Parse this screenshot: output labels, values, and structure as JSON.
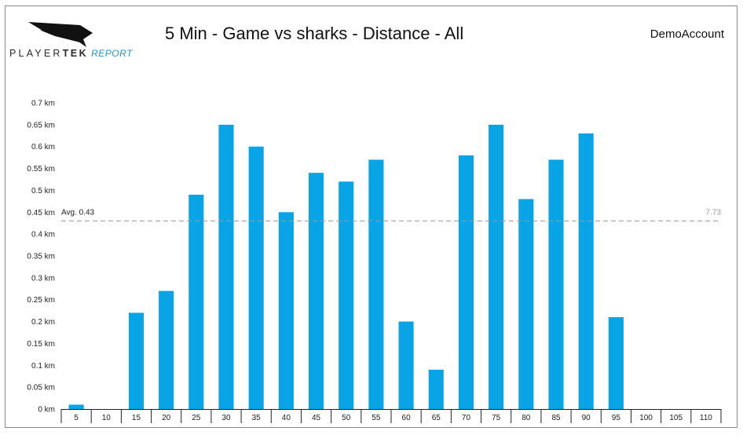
{
  "header": {
    "brand_player": "PLAYER",
    "brand_tek": "TEK",
    "brand_report": "REPORT",
    "title": "5 Min - Game vs sharks - Distance - All",
    "account": "DemoAccount"
  },
  "colors": {
    "bar": "#08a4e6",
    "avg_line": "#9a9a9a",
    "axis": "#222222",
    "text": "#222222",
    "total_label": "#9a9a9a"
  },
  "chart_data": {
    "type": "bar",
    "title": "5 Min - Game vs sharks - Distance - All",
    "xlabel": "",
    "ylabel": "",
    "categories": [
      "5",
      "10",
      "15",
      "20",
      "25",
      "30",
      "35",
      "40",
      "45",
      "50",
      "55",
      "60",
      "65",
      "70",
      "75",
      "80",
      "85",
      "90",
      "95",
      "100",
      "105",
      "110"
    ],
    "values": [
      0.01,
      0,
      0.22,
      0.27,
      0.49,
      0.65,
      0.6,
      0.45,
      0.54,
      0.52,
      0.57,
      0.2,
      0.09,
      0.58,
      0.65,
      0.48,
      0.57,
      0.63,
      0.21,
      0,
      0,
      0
    ],
    "ylim": [
      0,
      0.7
    ],
    "yticks": [
      0,
      0.05,
      0.1,
      0.15,
      0.2,
      0.25,
      0.3,
      0.35,
      0.4,
      0.45,
      0.5,
      0.55,
      0.6,
      0.65,
      0.7
    ],
    "ytick_labels": [
      "0 km",
      "0.05 km",
      "0.1 km",
      "0.15 km",
      "0.2 km",
      "0.25 km",
      "0.3 km",
      "0.35 km",
      "0.4 km",
      "0.45 km",
      "0.5 km",
      "0.55 km",
      "0.6 km",
      "0.65 km",
      "0.7 km"
    ],
    "grid": false,
    "average": {
      "value": 0.43,
      "label": "Avg. 0.43"
    },
    "total_label": "7.73"
  }
}
